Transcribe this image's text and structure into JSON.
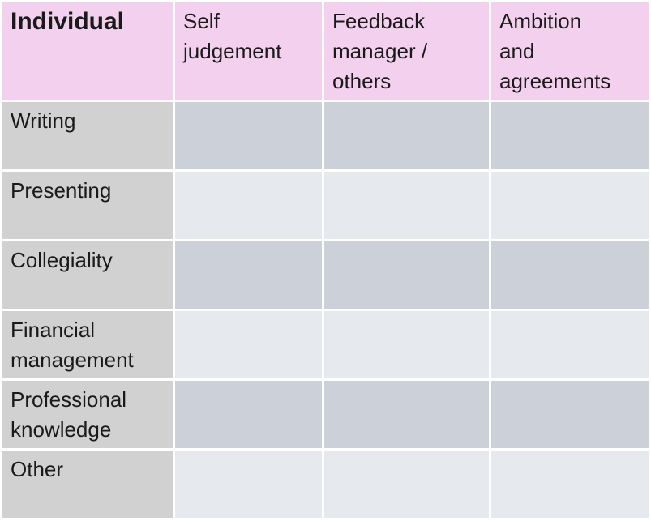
{
  "table": {
    "header": {
      "corner_label": "Individual",
      "columns": [
        "Self\njudgement",
        "Feedback\nmanager /\nothers",
        "Ambition\nand\nagreements"
      ]
    },
    "rows": [
      {
        "label": "Writing"
      },
      {
        "label": "Presenting"
      },
      {
        "label": "Collegiality"
      },
      {
        "label": "Financial\nmanagement"
      },
      {
        "label": "Professional\nknowledge"
      },
      {
        "label": "Other"
      }
    ]
  },
  "colors": {
    "header_bg": "#f2d0ee",
    "row_label_bg": "#d1d1d1",
    "data_row_dark": "#ccd1d9",
    "data_row_light": "#e6e9ed",
    "grid_gap": "#ffffff",
    "text": "#1a1a1a"
  }
}
